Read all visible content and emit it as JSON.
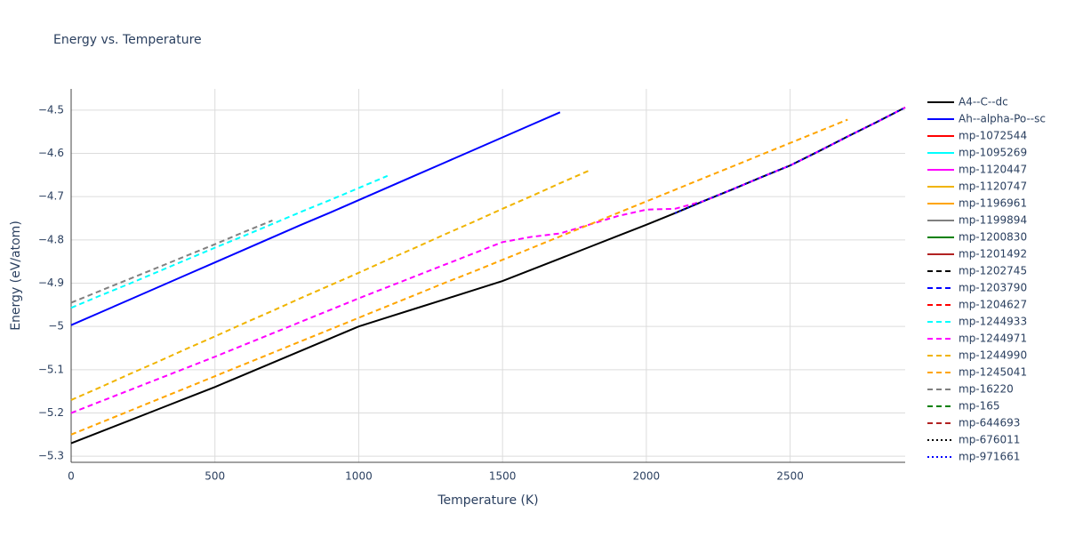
{
  "chart_data": {
    "type": "line",
    "title": "Energy vs. Temperature",
    "x_label": "Temperature (K)",
    "y_label": "Energy (eV/atom)",
    "xlim": [
      0,
      2900
    ],
    "xticks": [
      0,
      500,
      1000,
      1500,
      2000,
      2500
    ],
    "ylim": [
      -5.314,
      -4.451
    ],
    "yticks": [
      {
        "value": -5.3,
        "label": "−5.3"
      },
      {
        "value": -5.2,
        "label": "−5.2"
      },
      {
        "value": -5.1,
        "label": "−5.1"
      },
      {
        "value": -5,
        "label": "−5"
      },
      {
        "value": -4.9,
        "label": "−4.9"
      },
      {
        "value": -4.8,
        "label": "−4.8"
      },
      {
        "value": -4.7,
        "label": "−4.7"
      },
      {
        "value": -4.6,
        "label": "−4.6"
      },
      {
        "value": -4.5,
        "label": "−4.5"
      }
    ],
    "grid": true,
    "legend": "right",
    "x": [
      0,
      100,
      200,
      300,
      400,
      500,
      600,
      700,
      800,
      900,
      1000,
      1100,
      1200,
      1300,
      1400,
      1500,
      1600,
      1700,
      1800,
      1900,
      2000,
      2100,
      2200,
      2300,
      2400,
      2500,
      2600,
      2700,
      2800,
      2900
    ],
    "series": [
      {
        "name": "A4--C--dc",
        "color": "#000000",
        "dash": "solid",
        "values": [
          -5.27,
          -5.244,
          -5.218,
          -5.192,
          -5.166,
          -5.14,
          -5.112,
          -5.084,
          -5.056,
          -5.028,
          -5.0,
          -4.979,
          -4.958,
          -4.937,
          -4.916,
          -4.895,
          -4.869,
          -4.843,
          -4.817,
          -4.791,
          -4.765,
          -4.738,
          -4.71,
          -4.683,
          -4.655,
          -4.628,
          -4.595,
          -4.561,
          -4.528,
          -4.494
        ]
      },
      {
        "name": "Ah--alpha-Po--sc",
        "color": "#0000ff",
        "dash": "solid",
        "values": [
          -4.997,
          -4.968,
          -4.939,
          -4.91,
          -4.881,
          -4.852,
          -4.823,
          -4.794,
          -4.765,
          -4.737,
          -4.708,
          -4.679,
          -4.65,
          -4.621,
          -4.592,
          -4.563,
          -4.534,
          -4.505,
          null,
          null,
          null,
          null,
          null,
          null,
          null,
          null,
          null,
          null,
          null,
          null
        ]
      },
      {
        "name": "mp-1072544",
        "color": "#ff0000",
        "dash": "solid",
        "values": [
          null,
          null,
          null,
          null,
          null,
          null,
          null,
          null,
          null,
          null,
          null,
          null,
          null,
          null,
          null,
          null,
          null,
          null,
          null,
          null,
          null,
          null,
          null,
          null,
          null,
          null,
          null,
          null,
          null,
          null
        ]
      },
      {
        "name": "mp-1095269",
        "color": "#00ffff",
        "dash": "solid",
        "values": [
          null,
          null,
          null,
          null,
          null,
          null,
          null,
          null,
          null,
          null,
          null,
          null,
          null,
          null,
          null,
          null,
          null,
          null,
          null,
          null,
          null,
          null,
          null,
          null,
          null,
          null,
          null,
          null,
          null,
          null
        ]
      },
      {
        "name": "mp-1120447",
        "color": "#ff00ff",
        "dash": "solid",
        "values": [
          null,
          null,
          null,
          null,
          null,
          null,
          null,
          null,
          null,
          null,
          null,
          null,
          null,
          null,
          null,
          null,
          null,
          null,
          null,
          null,
          null,
          null,
          null,
          null,
          null,
          null,
          null,
          null,
          null,
          null
        ]
      },
      {
        "name": "mp-1120747",
        "color": "#f0b400",
        "dash": "solid",
        "values": [
          null,
          null,
          null,
          null,
          null,
          null,
          null,
          null,
          null,
          null,
          null,
          null,
          null,
          null,
          null,
          null,
          null,
          null,
          null,
          null,
          null,
          null,
          null,
          null,
          null,
          null,
          null,
          null,
          null,
          null
        ]
      },
      {
        "name": "mp-1196961",
        "color": "#ffa500",
        "dash": "solid",
        "values": [
          null,
          null,
          null,
          null,
          null,
          null,
          null,
          null,
          null,
          null,
          null,
          null,
          null,
          null,
          null,
          null,
          null,
          null,
          null,
          null,
          null,
          null,
          null,
          null,
          null,
          null,
          null,
          null,
          null,
          null
        ]
      },
      {
        "name": "mp-1199894",
        "color": "#808080",
        "dash": "solid",
        "values": [
          null,
          null,
          null,
          null,
          null,
          null,
          null,
          null,
          null,
          null,
          null,
          null,
          null,
          null,
          null,
          null,
          null,
          null,
          null,
          null,
          null,
          null,
          null,
          null,
          null,
          null,
          null,
          null,
          null,
          null
        ]
      },
      {
        "name": "mp-1200830",
        "color": "#008000",
        "dash": "solid",
        "values": [
          null,
          null,
          null,
          null,
          null,
          null,
          null,
          null,
          null,
          null,
          null,
          null,
          null,
          null,
          null,
          null,
          null,
          null,
          null,
          null,
          null,
          null,
          null,
          null,
          null,
          null,
          null,
          null,
          null,
          null
        ]
      },
      {
        "name": "mp-1201492",
        "color": "#b22222",
        "dash": "solid",
        "values": [
          null,
          null,
          null,
          null,
          null,
          null,
          null,
          null,
          null,
          null,
          null,
          null,
          null,
          null,
          null,
          null,
          null,
          null,
          null,
          null,
          null,
          null,
          null,
          null,
          null,
          null,
          null,
          null,
          null,
          null
        ]
      },
      {
        "name": "mp-1202745",
        "color": "#000000",
        "dash": "dash",
        "values": [
          null,
          null,
          null,
          null,
          null,
          null,
          null,
          null,
          null,
          null,
          null,
          null,
          null,
          null,
          null,
          null,
          null,
          null,
          null,
          null,
          null,
          null,
          null,
          null,
          null,
          null,
          null,
          null,
          null,
          null
        ]
      },
      {
        "name": "mp-1203790",
        "color": "#0000ff",
        "dash": "dash",
        "values": [
          null,
          null,
          null,
          null,
          null,
          null,
          null,
          null,
          null,
          null,
          null,
          null,
          null,
          null,
          null,
          null,
          null,
          null,
          null,
          null,
          null,
          null,
          null,
          null,
          null,
          null,
          null,
          null,
          null,
          null
        ]
      },
      {
        "name": "mp-1204627",
        "color": "#ff0000",
        "dash": "dash",
        "values": [
          null,
          null,
          null,
          null,
          null,
          null,
          null,
          null,
          null,
          null,
          null,
          null,
          null,
          null,
          null,
          null,
          null,
          null,
          null,
          null,
          null,
          null,
          null,
          null,
          null,
          null,
          null,
          null,
          null,
          null
        ]
      },
      {
        "name": "mp-1244933",
        "color": "#00ffff",
        "dash": "dash",
        "values": [
          -4.957,
          -4.929,
          -4.902,
          -4.874,
          -4.846,
          -4.818,
          -4.791,
          -4.763,
          -4.735,
          -4.708,
          -4.68,
          -4.652,
          null,
          null,
          null,
          null,
          null,
          null,
          null,
          null,
          null,
          null,
          null,
          null,
          null,
          null,
          null,
          null,
          null,
          null
        ]
      },
      {
        "name": "mp-1244971",
        "color": "#ff00ff",
        "dash": "dash",
        "values": [
          -5.2,
          -5.174,
          -5.148,
          -5.122,
          -5.096,
          -5.07,
          -5.043,
          -5.016,
          -4.989,
          -4.962,
          -4.935,
          -4.909,
          -4.883,
          -4.857,
          -4.831,
          -4.805,
          -4.793,
          -4.785,
          -4.765,
          -4.745,
          -4.73,
          -4.728,
          -4.71,
          -4.683,
          -4.655,
          -4.628,
          -4.595,
          -4.561,
          -4.528,
          -4.494
        ]
      },
      {
        "name": "mp-1244990",
        "color": "#f0b400",
        "dash": "dash",
        "values": [
          -5.17,
          -5.141,
          -5.111,
          -5.082,
          -5.052,
          -5.023,
          -4.993,
          -4.964,
          -4.934,
          -4.905,
          -4.876,
          -4.846,
          -4.817,
          -4.787,
          -4.758,
          -4.728,
          -4.699,
          -4.669,
          -4.64,
          null,
          null,
          null,
          null,
          null,
          null,
          null,
          null,
          null,
          null,
          null
        ]
      },
      {
        "name": "mp-1245041",
        "color": "#ffa500",
        "dash": "dash",
        "values": [
          -5.25,
          -5.223,
          -5.196,
          -5.169,
          -5.142,
          -5.115,
          -5.088,
          -5.061,
          -5.034,
          -5.007,
          -4.98,
          -4.953,
          -4.926,
          -4.899,
          -4.873,
          -4.846,
          -4.819,
          -4.792,
          -4.765,
          -4.738,
          -4.711,
          -4.684,
          -4.657,
          -4.63,
          -4.603,
          -4.576,
          -4.549,
          -4.522,
          null,
          null
        ]
      },
      {
        "name": "mp-16220",
        "color": "#808080",
        "dash": "dash",
        "values": [
          -4.945,
          -4.918,
          -4.891,
          -4.864,
          -4.837,
          -4.81,
          -4.782,
          -4.755,
          null,
          null,
          null,
          null,
          null,
          null,
          null,
          null,
          null,
          null,
          null,
          null,
          null,
          null,
          null,
          null,
          null,
          null,
          null,
          null,
          null,
          null
        ]
      },
      {
        "name": "mp-165",
        "color": "#008000",
        "dash": "dash",
        "values": [
          null,
          null,
          null,
          null,
          null,
          null,
          null,
          null,
          null,
          null,
          null,
          null,
          null,
          null,
          null,
          null,
          null,
          null,
          null,
          null,
          null,
          null,
          null,
          null,
          null,
          null,
          null,
          null,
          null,
          null
        ]
      },
      {
        "name": "mp-644693",
        "color": "#b22222",
        "dash": "dash",
        "values": [
          null,
          null,
          null,
          null,
          null,
          null,
          null,
          null,
          null,
          null,
          null,
          null,
          null,
          null,
          null,
          null,
          null,
          null,
          null,
          null,
          null,
          null,
          null,
          null,
          null,
          null,
          null,
          null,
          null,
          null
        ]
      },
      {
        "name": "mp-676011",
        "color": "#000000",
        "dash": "dot",
        "values": [
          null,
          null,
          null,
          null,
          null,
          null,
          null,
          null,
          null,
          null,
          null,
          null,
          null,
          null,
          null,
          null,
          null,
          null,
          null,
          null,
          null,
          -4.738,
          -4.71,
          -4.683,
          -4.655,
          -4.628,
          -4.595,
          -4.561,
          -4.528,
          -4.494
        ]
      },
      {
        "name": "mp-971661",
        "color": "#0000ff",
        "dash": "dot",
        "values": [
          null,
          null,
          null,
          null,
          null,
          null,
          null,
          null,
          null,
          null,
          null,
          null,
          null,
          null,
          null,
          null,
          null,
          null,
          null,
          null,
          null,
          -4.738,
          -4.71,
          -4.683,
          -4.655,
          -4.628,
          -4.595,
          -4.561,
          -4.528,
          -4.494
        ]
      }
    ]
  }
}
